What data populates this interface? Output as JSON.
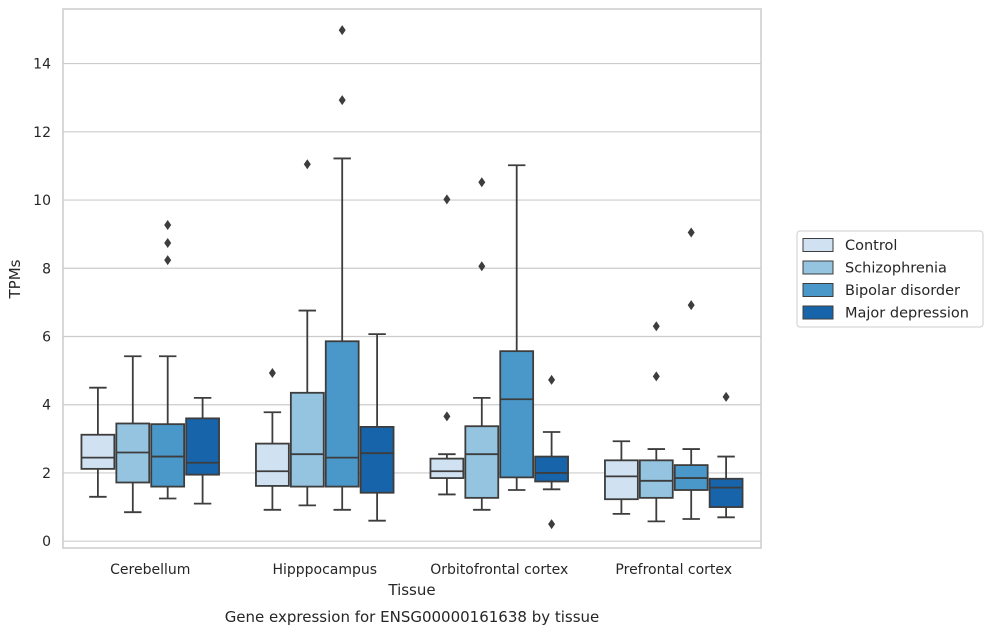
{
  "caption": "Gene expression for ENSG00000161638 by tissue",
  "chart_data": {
    "type": "box",
    "title": "",
    "xlabel": "Tissue",
    "ylabel": "TPMs",
    "ylim": [
      -0.2,
      15.6
    ],
    "yticks": [
      0,
      2,
      4,
      6,
      8,
      10,
      12,
      14
    ],
    "grid": "horizontal",
    "legend_position": "right",
    "categories": [
      "Cerebellum",
      "Hipppocampus",
      "Orbitofrontal cortex",
      "Prefrontal cortex"
    ],
    "series": [
      {
        "name": "Control",
        "color": "#d0e1f2",
        "boxes": [
          {
            "whislo": 1.3,
            "q1": 2.12,
            "med": 2.45,
            "q3": 3.12,
            "whishi": 4.5,
            "fliers": []
          },
          {
            "whislo": 0.92,
            "q1": 1.62,
            "med": 2.05,
            "q3": 2.86,
            "whishi": 3.78,
            "fliers": [
              4.93
            ]
          },
          {
            "whislo": 1.37,
            "q1": 1.85,
            "med": 2.05,
            "q3": 2.42,
            "whishi": 2.55,
            "fliers": [
              3.66,
              10.02
            ]
          },
          {
            "whislo": 0.8,
            "q1": 1.23,
            "med": 1.9,
            "q3": 2.37,
            "whishi": 2.93,
            "fliers": []
          }
        ]
      },
      {
        "name": "Schizophrenia",
        "color": "#94c4df",
        "boxes": [
          {
            "whislo": 0.85,
            "q1": 1.72,
            "med": 2.6,
            "q3": 3.45,
            "whishi": 5.42,
            "fliers": []
          },
          {
            "whislo": 1.05,
            "q1": 1.6,
            "med": 2.55,
            "q3": 4.35,
            "whishi": 6.76,
            "fliers": [
              11.05
            ]
          },
          {
            "whislo": 0.92,
            "q1": 1.27,
            "med": 2.55,
            "q3": 3.37,
            "whishi": 4.2,
            "fliers": [
              8.06,
              10.52
            ]
          },
          {
            "whislo": 0.58,
            "q1": 1.27,
            "med": 1.77,
            "q3": 2.37,
            "whishi": 2.7,
            "fliers": [
              4.83,
              6.3
            ]
          }
        ]
      },
      {
        "name": "Bipolar disorder",
        "color": "#4a98c9",
        "boxes": [
          {
            "whislo": 1.25,
            "q1": 1.6,
            "med": 2.48,
            "q3": 3.43,
            "whishi": 5.42,
            "fliers": [
              8.24,
              8.74,
              9.27
            ]
          },
          {
            "whislo": 0.92,
            "q1": 1.6,
            "med": 2.45,
            "q3": 5.86,
            "whishi": 11.22,
            "fliers": [
              12.93,
              14.98
            ]
          },
          {
            "whislo": 1.5,
            "q1": 1.87,
            "med": 4.16,
            "q3": 5.57,
            "whishi": 11.02,
            "fliers": []
          },
          {
            "whislo": 0.65,
            "q1": 1.5,
            "med": 1.85,
            "q3": 2.23,
            "whishi": 2.7,
            "fliers": [
              6.92,
              9.05
            ]
          }
        ]
      },
      {
        "name": "Major depression",
        "color": "#1764ab",
        "boxes": [
          {
            "whislo": 1.1,
            "q1": 1.95,
            "med": 2.3,
            "q3": 3.6,
            "whishi": 4.2,
            "fliers": []
          },
          {
            "whislo": 0.6,
            "q1": 1.42,
            "med": 2.58,
            "q3": 3.35,
            "whishi": 6.07,
            "fliers": []
          },
          {
            "whislo": 1.52,
            "q1": 1.75,
            "med": 2.0,
            "q3": 2.48,
            "whishi": 3.2,
            "fliers": [
              0.5,
              4.73
            ]
          },
          {
            "whislo": 0.7,
            "q1": 1.0,
            "med": 1.57,
            "q3": 1.83,
            "whishi": 2.48,
            "fliers": [
              4.23
            ]
          }
        ]
      }
    ]
  }
}
